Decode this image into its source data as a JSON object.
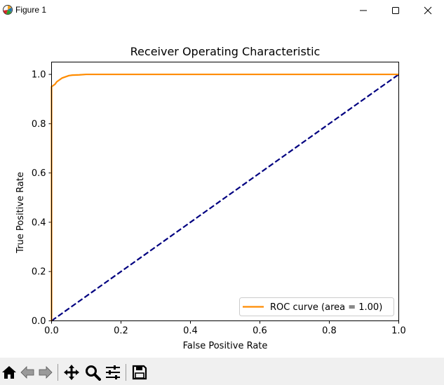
{
  "window": {
    "title": "Figure 1",
    "controls": [
      "minimize-icon",
      "maximize-icon",
      "close-icon"
    ]
  },
  "toolbar": {
    "buttons": [
      "home-icon",
      "back-icon",
      "forward-icon",
      "pan-icon",
      "zoom-icon",
      "configure-subplots-icon",
      "save-icon"
    ]
  },
  "chart_data": {
    "type": "line",
    "title": "Receiver Operating Characteristic",
    "xlabel": "False Positive Rate",
    "ylabel": "True Positive Rate",
    "xlim": [
      0.0,
      1.0
    ],
    "ylim": [
      0.0,
      1.05
    ],
    "xticks": [
      "0.0",
      "0.2",
      "0.4",
      "0.6",
      "0.8",
      "1.0"
    ],
    "yticks": [
      "0.0",
      "0.2",
      "0.4",
      "0.6",
      "0.8",
      "1.0"
    ],
    "grid": false,
    "legend": {
      "placement": "lower-right",
      "entries": [
        "ROC curve (area = 1.00)"
      ]
    },
    "series": [
      {
        "name": "ROC curve (area = 1.00)",
        "color": "#ff8c00",
        "style": "solid",
        "x": [
          0.0,
          0.0,
          0.0,
          0.0,
          0.005,
          0.01,
          0.015,
          0.02,
          0.025,
          0.03,
          0.04,
          0.05,
          0.06,
          0.08,
          0.1,
          1.0
        ],
        "y": [
          0.0,
          0.8,
          0.93,
          0.95,
          0.955,
          0.96,
          0.97,
          0.975,
          0.98,
          0.985,
          0.99,
          0.995,
          0.997,
          0.998,
          1.0,
          1.0
        ]
      },
      {
        "color": "#000080",
        "style": "dashed",
        "x": [
          0.0,
          1.0
        ],
        "y": [
          0.0,
          1.0
        ]
      }
    ]
  }
}
